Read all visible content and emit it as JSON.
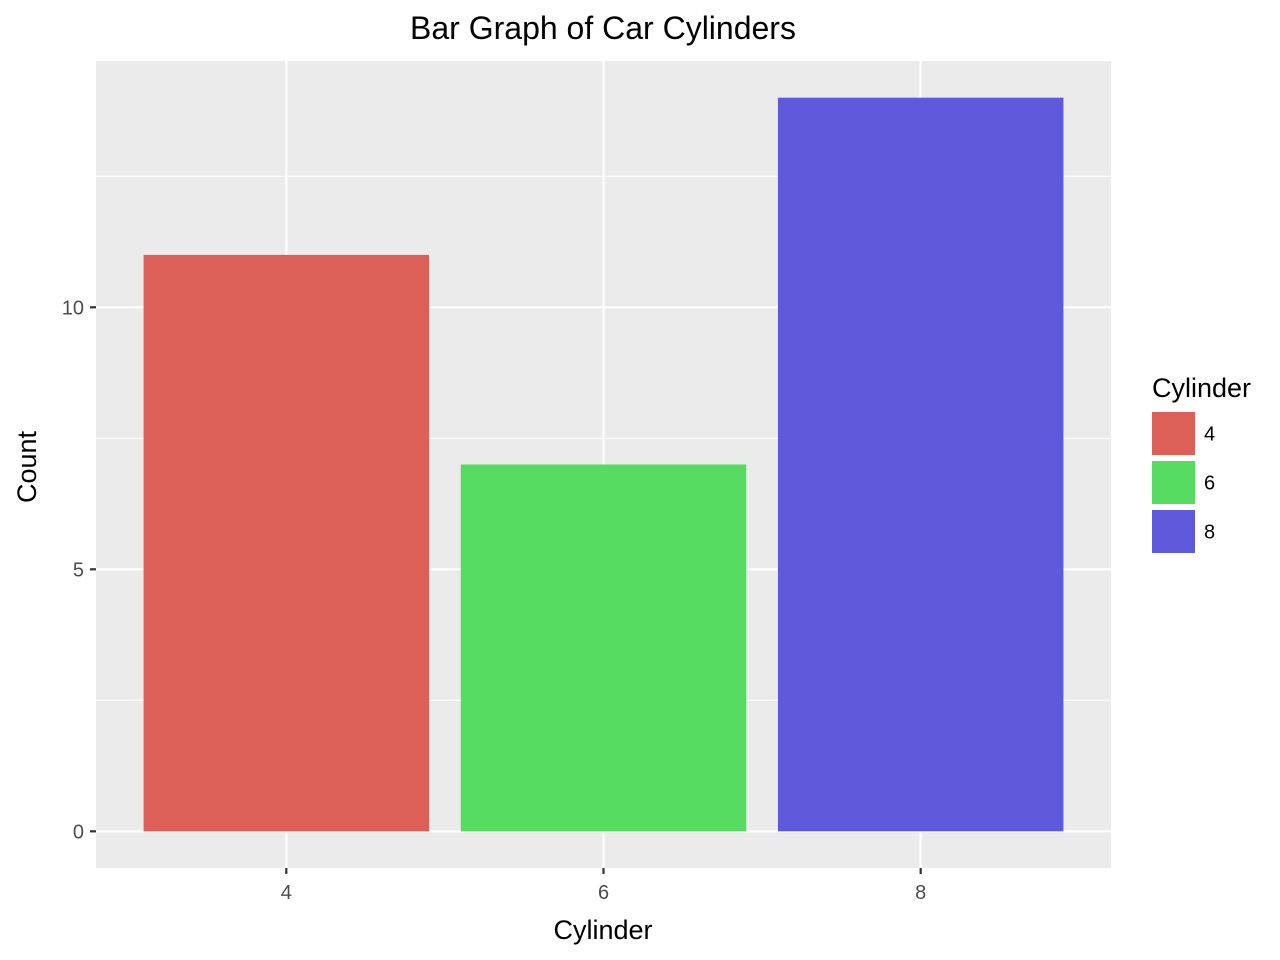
{
  "chart_data": {
    "type": "bar",
    "title": "Bar Graph of Car Cylinders",
    "xlabel": "Cylinder",
    "ylabel": "Count",
    "categories": [
      "4",
      "6",
      "8"
    ],
    "values": [
      11,
      7,
      14
    ],
    "colors": [
      "#dc6058",
      "#56dc60",
      "#5e5adb"
    ],
    "ylim": [
      -0.7,
      14.7
    ],
    "yticks": [
      0,
      5,
      10
    ],
    "yticks_minor": [
      2.5,
      7.5,
      12.5
    ],
    "grid": true,
    "panel_background": "#ebebeb",
    "legend": {
      "title": "Cylinder",
      "placement": "right",
      "entries": [
        "4",
        "6",
        "8"
      ]
    }
  }
}
